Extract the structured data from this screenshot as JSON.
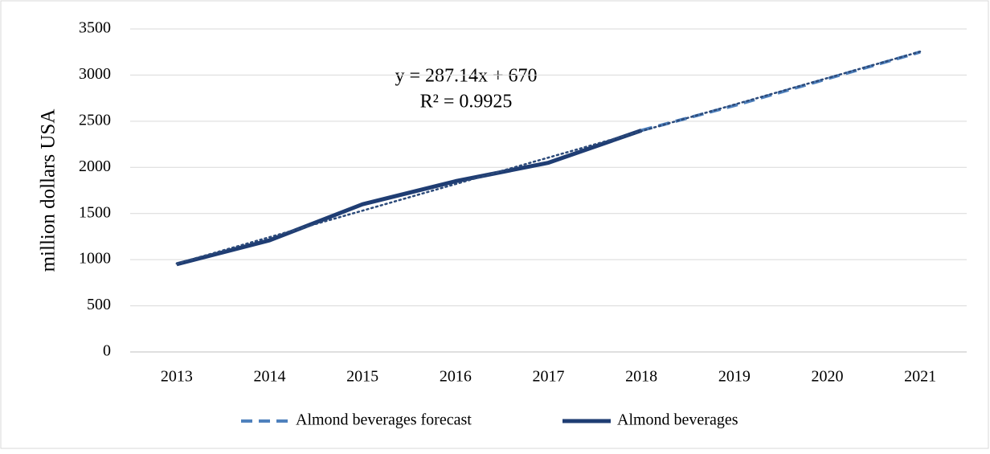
{
  "chart_data": {
    "type": "line",
    "ylabel": "million dollars USA",
    "categories": [
      "2013",
      "2014",
      "2015",
      "2016",
      "2017",
      "2018",
      "2019",
      "2020",
      "2021"
    ],
    "series": [
      {
        "name": "Almond beverages forecast",
        "color": "#4f81bd",
        "style": "dashed",
        "values": [
          null,
          null,
          null,
          null,
          null,
          2400,
          2670,
          2960,
          3250
        ]
      },
      {
        "name": "Almond beverages",
        "color": "#1f3d73",
        "style": "solid",
        "values": [
          950,
          1210,
          1600,
          1850,
          2050,
          2400,
          null,
          null,
          null
        ]
      }
    ],
    "trendline": {
      "color": "#2c4a7a",
      "values": [
        957,
        1244,
        1531,
        1819,
        2106,
        2393,
        2680,
        2967,
        3254
      ]
    },
    "annotations": [
      "y = 287.14x + 670",
      "R² = 0.9925"
    ],
    "ylim": [
      0,
      3500
    ],
    "yticks": [
      0,
      500,
      1000,
      1500,
      2000,
      2500,
      3000,
      3500
    ],
    "grid": true,
    "legend": "bottom"
  }
}
